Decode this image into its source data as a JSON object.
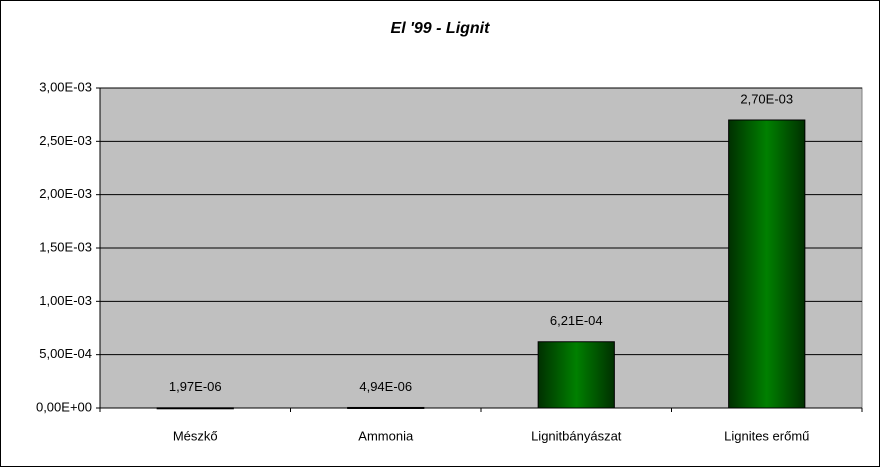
{
  "chart_data": {
    "type": "bar",
    "title": "El '99 - Lignit",
    "categories": [
      "Mészkő",
      "Ammonia",
      "Lignitbányászat",
      "Lignites erőmű"
    ],
    "values": [
      1.97e-06,
      4.94e-06,
      0.000621,
      0.0027
    ],
    "value_labels": [
      "1,97E-06",
      "4,94E-06",
      "6,21E-04",
      "2,70E-03"
    ],
    "color": "#008000",
    "ylim": [
      0,
      0.003
    ],
    "yticks": [
      {
        "value": 0,
        "label": "0,00E+00"
      },
      {
        "value": 0.0005,
        "label": "5,00E-04"
      },
      {
        "value": 0.001,
        "label": "1,00E-03"
      },
      {
        "value": 0.0015,
        "label": "1,50E-03"
      },
      {
        "value": 0.002,
        "label": "2,00E-03"
      },
      {
        "value": 0.0025,
        "label": "2,50E-03"
      },
      {
        "value": 0.003,
        "label": "3,00E-03"
      }
    ],
    "grid": true
  }
}
